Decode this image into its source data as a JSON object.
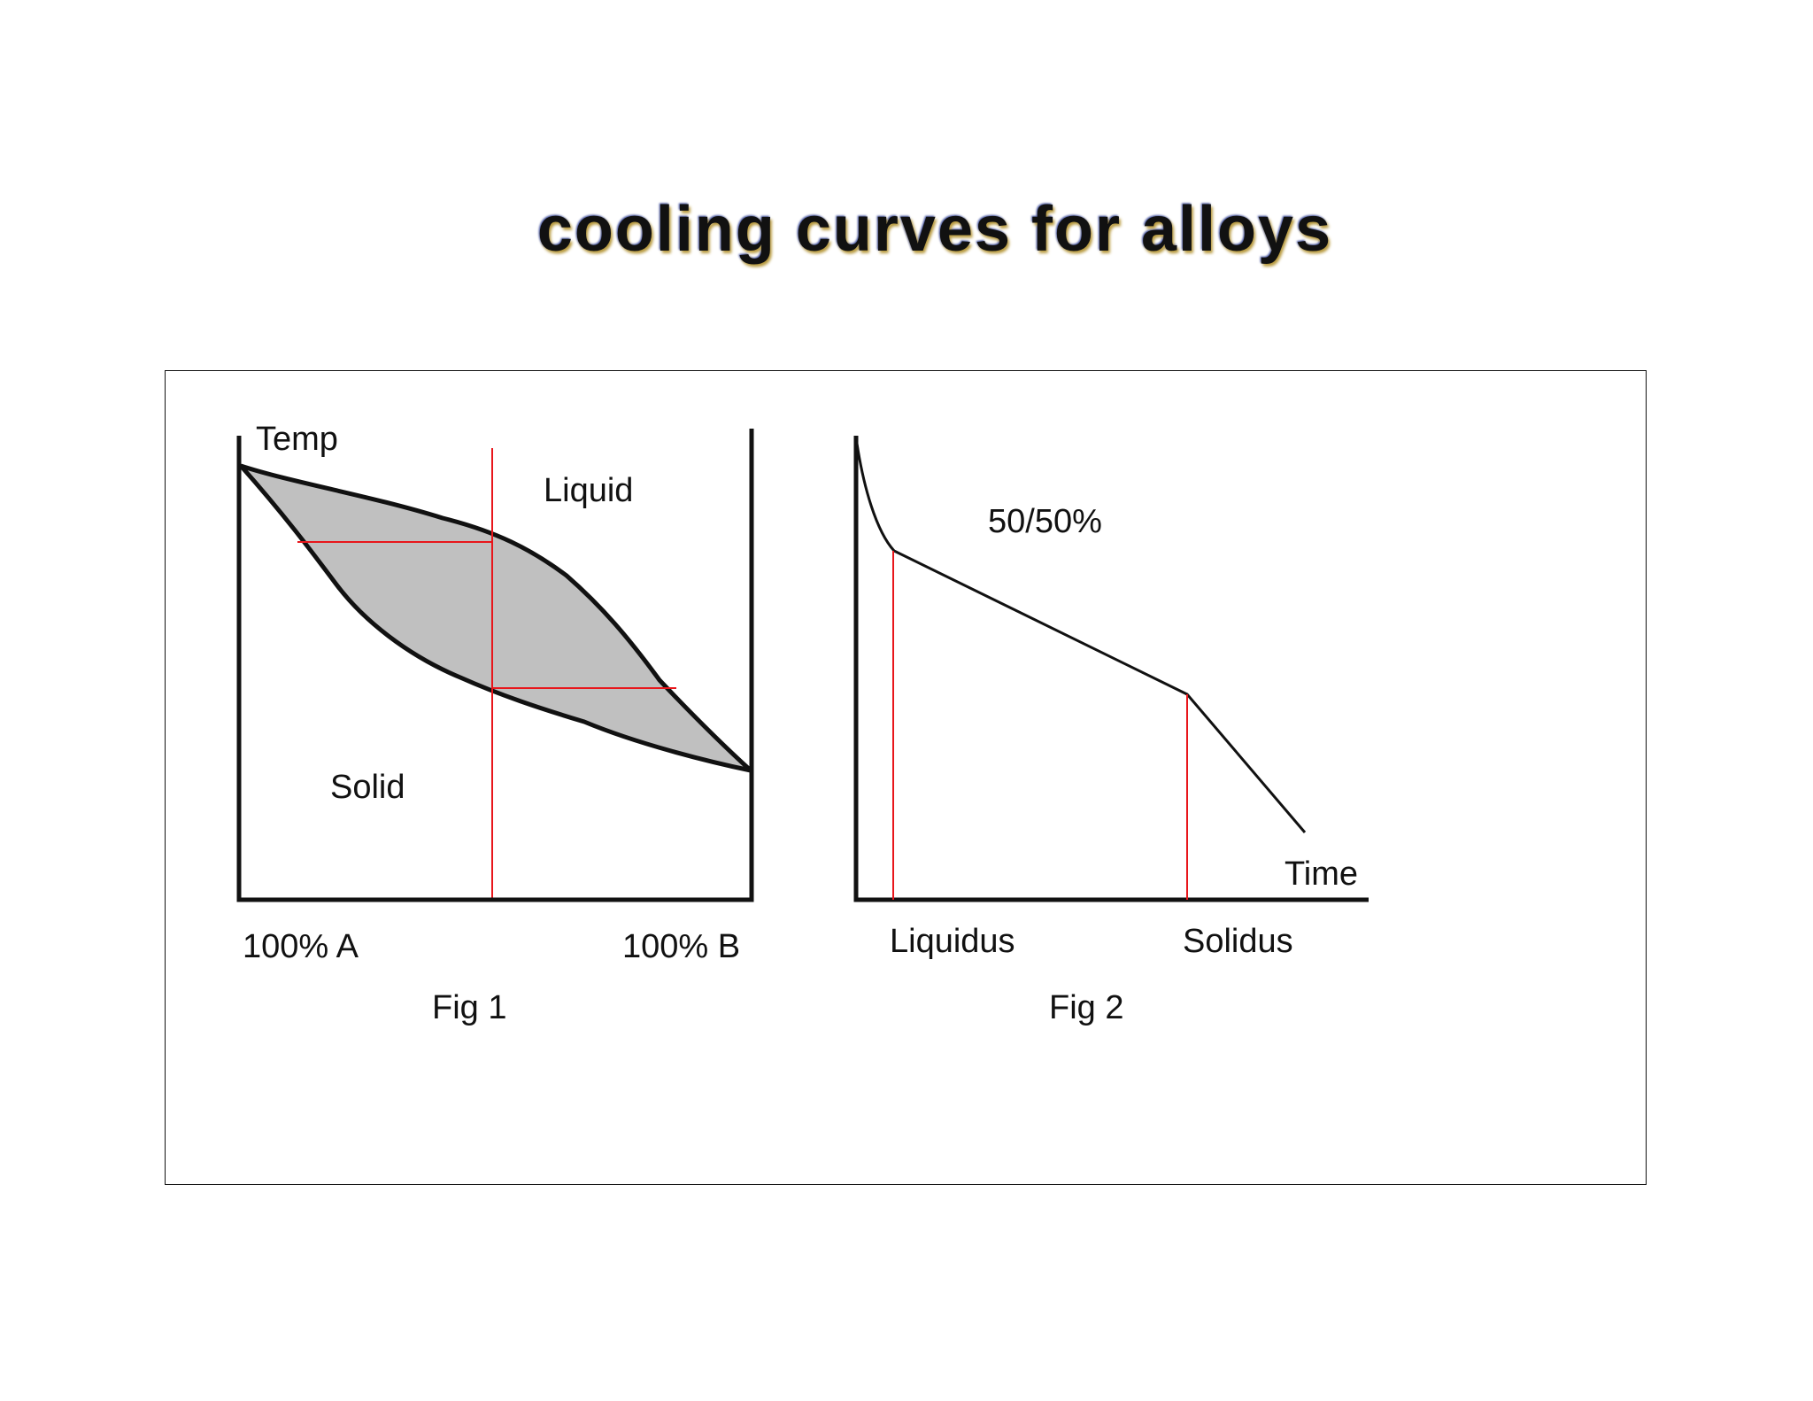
{
  "title": "cooling curves for alloys",
  "colors": {
    "curve": "#111111",
    "guide_lines": "#e8161b",
    "two_phase_region": "#c0c0c0",
    "frame": "#111111"
  },
  "fig1": {
    "axis_label_y": "Temp",
    "region_top": "Liquid",
    "region_bottom": "Solid",
    "x_label_left": "100% A",
    "x_label_right": "100% B",
    "caption": "Fig 1"
  },
  "fig2": {
    "composition": "50/50%",
    "axis_label_x": "Time",
    "marker_left": "Liquidus",
    "marker_right": "Solidus",
    "caption": "Fig 2"
  }
}
